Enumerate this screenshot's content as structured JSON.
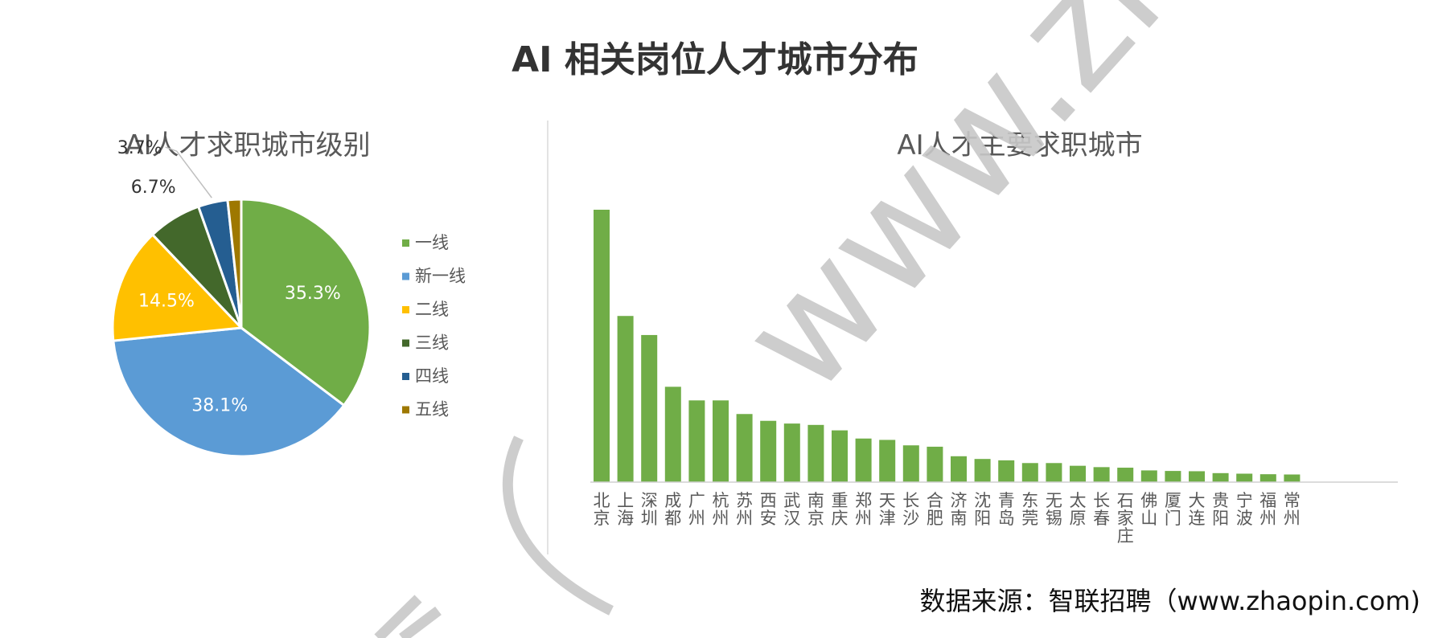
{
  "title": "AI 相关岗位人才城市分布",
  "source": "数据来源：智联招聘（www.zhaopin.com)",
  "watermark": "www.zhaopin.c",
  "chart_data": [
    {
      "type": "pie",
      "title": "AI人才求职城市级别",
      "slices": [
        {
          "label": "一线",
          "value": 35.3,
          "display": "35.3%",
          "color": "#70AD47"
        },
        {
          "label": "新一线",
          "value": 38.1,
          "display": "38.1%",
          "color": "#5B9BD5"
        },
        {
          "label": "二线",
          "value": 14.5,
          "display": "14.5%",
          "color": "#FFC000"
        },
        {
          "label": "三线",
          "value": 6.7,
          "display": "6.7%",
          "color": "#43682B"
        },
        {
          "label": "四线",
          "value": 3.7,
          "display": "3.7%",
          "color": "#255E91"
        },
        {
          "label": "五线",
          "value": 1.7,
          "display": "",
          "color": "#9E7800"
        }
      ],
      "legend_position": "right"
    },
    {
      "type": "bar",
      "title": "AI人才主要求职城市",
      "color": "#70AD47",
      "categories": [
        "北京",
        "上海",
        "深圳",
        "成都",
        "广州",
        "杭州",
        "苏州",
        "西安",
        "武汉",
        "南京",
        "重庆",
        "郑州",
        "天津",
        "长沙",
        "合肥",
        "济南",
        "沈阳",
        "青岛",
        "东莞",
        "无锡",
        "太原",
        "长春",
        "石家庄",
        "佛山",
        "厦门",
        "大连",
        "贵阳",
        "宁波",
        "福州",
        "常州"
      ],
      "values": [
        100,
        61,
        54,
        35,
        30,
        30,
        25,
        22.5,
        21.5,
        21,
        19,
        16,
        15.5,
        13.5,
        13,
        9.5,
        8.5,
        8,
        7,
        7,
        6,
        5.5,
        5.3,
        4.3,
        4.1,
        4,
        3.3,
        3.1,
        2.9,
        2.8
      ],
      "ylim": [
        0,
        100
      ],
      "grid": false
    }
  ]
}
